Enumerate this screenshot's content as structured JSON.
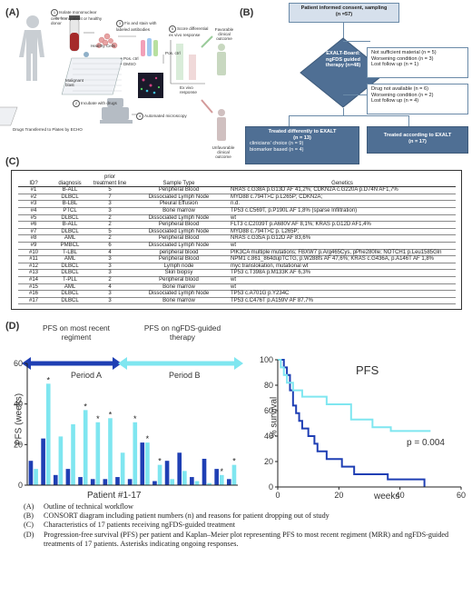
{
  "panel_labels": {
    "a": "(A)",
    "b": "(B)",
    "c": "(C)",
    "d": "(D)"
  },
  "panel_a": {
    "step1": "Isolate mononuclear cells from patient or healthy donor",
    "step2": "Incubate with drugs",
    "step3": "Fix and stain with labeled antibodies",
    "step4": "Automated microscopy",
    "step5": "Score differential ex vivo response",
    "n1": "1",
    "n2": "2",
    "n3": "3",
    "n4": "4",
    "n5": "5",
    "healthy_cells": "Healthy Cells",
    "malignant_blast": "Malignant blast",
    "pos_ctrl": "+ Pos. ctrl",
    "dmso": "+ DMSO",
    "drugs_transfer": "Drugs Transferred to Plates by ECHO",
    "ex_vivo_response": "Ex vivo response",
    "pos_ctl_axis": "Pos. ctrl",
    "favorable": "Favorable clinical outcome",
    "unfavorable": "Unfavorable clinical outcome"
  },
  "panel_b": {
    "consent": "Patient informed consent, sampling",
    "consent_n": "(n =57)",
    "exalt_board": "EXALT-Board: ngFDS guided therapy (n=48)",
    "excl1": [
      "Not sufficient material (n = 5)",
      "Worsening condition (n = 3)",
      "Lost follow up (n = 1)"
    ],
    "excl2": [
      "Drug not available (n = 6)",
      "Worsening condition (n = 2)",
      "Lost follow up (n = 4)"
    ],
    "treated_diff": "Treated differently to EXALT",
    "treated_diff_n": "(n = 13)",
    "treated_diff_sub": [
      "clinicians' choice (n = 9)",
      "biomarker based (n = 4)"
    ],
    "treated_acc": "Treated according to EXALT",
    "treated_acc_n": "(n = 17)"
  },
  "panel_c": {
    "headers": [
      "ID?",
      "diagnosis",
      "prior treatment line",
      "Sample Type",
      "Genetics"
    ],
    "rows": [
      [
        "#1",
        "B-ALL",
        "5",
        "Peripheral Blood",
        "NRAS c.G38A p.G13D AF 41,2%; CDKN2A c.G220A p.D74N AF1,7%"
      ],
      [
        "#2",
        "DLBCL",
        "7",
        "Dissociated Lymph Node",
        "MYD88 c.794T>C p.L265P; CDKN2A;"
      ],
      [
        "#3",
        "B-LBL",
        "3",
        "Pleural Effusion",
        "n.d."
      ],
      [
        "#4",
        "PTCL",
        "3",
        "Bone marrow",
        "TP53 c.C569T, p.P190L AF 1,8% (sparse Infiltration)"
      ],
      [
        "#5",
        "DLBCL",
        "2",
        "Dissociated Lymph Node",
        "wt"
      ],
      [
        "#6",
        "B-ALL",
        "2",
        "Peripheral Blood",
        "FLT3 c.C2039T p.A680V AF 8,1%; KRAS p.G12D AF1,4%"
      ],
      [
        "#7",
        "DLBCL",
        "5",
        "Dissociated Lymph Node",
        "MYD88 c.794T>C  p. L265P;"
      ],
      [
        "#8",
        "AML",
        "2",
        "Peripheral Blood",
        "NRAS c.G35A p.G12D AF 83,6%"
      ],
      [
        "#9",
        "PMBCL",
        "6",
        "Dissociated Lymph Node",
        "wt"
      ],
      [
        "#10",
        "T-LBL",
        "4",
        "peripheral blood",
        "PIK3CA multiple mutations; FBXW7 p.Arg465Cys, pPhe280Ile; NOTCH1 p.Leu1585Gln"
      ],
      [
        "#11",
        "AML",
        "3",
        "Peripheral Blood",
        "NPM1 c.861_864dupTCTG, p.W288fs AF 47,6%; KRAS c.G436A, p.A146T AF 1,8%"
      ],
      [
        "#12",
        "DLBCL",
        "3",
        "Lymph node",
        "myc translokation, mutational wt"
      ],
      [
        "#13",
        "DLBCL",
        "3",
        "Skin biopsy",
        "TP53 c.T398A p.M133K AF 6,3%"
      ],
      [
        "#14",
        "T-PLL",
        "2",
        "Peripheral blood",
        "wt"
      ],
      [
        "#15",
        "AML",
        "4",
        "Bone marrow",
        "wt"
      ],
      [
        "#16",
        "DLBCL",
        "3",
        "Dissociated Lymph Node",
        "TP53 c.A701G p.Y234C"
      ],
      [
        "#17",
        "DLBCL",
        "3",
        "Bone marrow",
        "TP53 c.C476T p.A159V AF 87,7%"
      ]
    ]
  },
  "panel_d": {
    "pfs_mrr": "PFS on most recent regiment",
    "pfs_ngfds": "PFS on ngFDS-guided therapy",
    "period_a": "Period   A",
    "period_b": "Period   B",
    "ylabel": "PFS (weeks)",
    "xlabel": "Patient #1-17",
    "km_title": "PFS",
    "km_ylabel": "% survival",
    "km_xlabel": "weeks",
    "p_value": "p = 0.004",
    "colors": {
      "mrr": "#1f3fb4",
      "ngfds": "#7fe6f0"
    }
  },
  "chart_data": [
    {
      "type": "bar",
      "ylabel": "PFS (weeks)",
      "xlabel": "Patient #1-17",
      "ylim": [
        0,
        60
      ],
      "yticks": [
        0,
        20,
        40,
        60
      ],
      "series": [
        {
          "name": "PFS on most recent regiment",
          "values": [
            12,
            23,
            5,
            8,
            4,
            3,
            3,
            4,
            3,
            21,
            2,
            12,
            16,
            4,
            13,
            8,
            3
          ],
          "ongoing": [
            false,
            false,
            false,
            false,
            false,
            false,
            false,
            false,
            false,
            false,
            false,
            false,
            false,
            false,
            false,
            false,
            false
          ]
        },
        {
          "name": "PFS on ngFDS-guided therapy",
          "values": [
            8,
            50,
            24,
            30,
            37,
            31,
            33,
            16,
            31,
            21,
            10,
            3,
            7,
            2,
            1,
            5,
            10
          ],
          "ongoing": [
            false,
            true,
            false,
            false,
            true,
            true,
            true,
            false,
            true,
            true,
            true,
            false,
            false,
            false,
            false,
            true,
            true
          ]
        }
      ]
    },
    {
      "type": "line",
      "title": "PFS",
      "ylabel": "% survival",
      "xlabel": "weeks",
      "xlim": [
        0,
        60
      ],
      "ylim": [
        0,
        100
      ],
      "xticks": [
        0,
        20,
        40,
        60
      ],
      "yticks": [
        0,
        20,
        40,
        60,
        80,
        100
      ],
      "series": [
        {
          "name": "PFS on most recent regiment",
          "x": [
            0,
            2,
            3,
            4,
            5,
            6,
            7,
            8,
            10,
            12,
            13,
            16,
            21,
            23,
            25,
            28,
            36,
            48
          ],
          "y": [
            100,
            94,
            88,
            76,
            64,
            58,
            52,
            46,
            40,
            34,
            28,
            22,
            16,
            16,
            10,
            10,
            6,
            0
          ]
        },
        {
          "name": "PFS on ngFDS-guided therapy",
          "x": [
            0,
            1,
            2,
            3,
            5,
            7,
            8,
            10,
            16,
            22,
            24,
            30,
            31,
            33,
            37,
            50
          ],
          "y": [
            100,
            94,
            88,
            82,
            76,
            76,
            71,
            71,
            65,
            65,
            53,
            53,
            47,
            47,
            44,
            44
          ]
        }
      ],
      "annotation": "p = 0.004"
    }
  ],
  "legend": [
    {
      "k": "(A)",
      "t": "Outline of technical workflow"
    },
    {
      "k": "(B)",
      "t": "CONSORT diagram including patient numbers (n) and reasons for patient dropping out of study"
    },
    {
      "k": "(C)",
      "t": "Characteristics of 17 patients receiving ngFDS-guided treatment"
    },
    {
      "k": "(D)",
      "t": "Progression-free survival (PFS) per patient and Kaplan–Meier plot representing PFS to most recent regiment (MRR) and ngFDS-guided treatments of 17 patients. Asterisks indicating ongoing responses."
    }
  ]
}
